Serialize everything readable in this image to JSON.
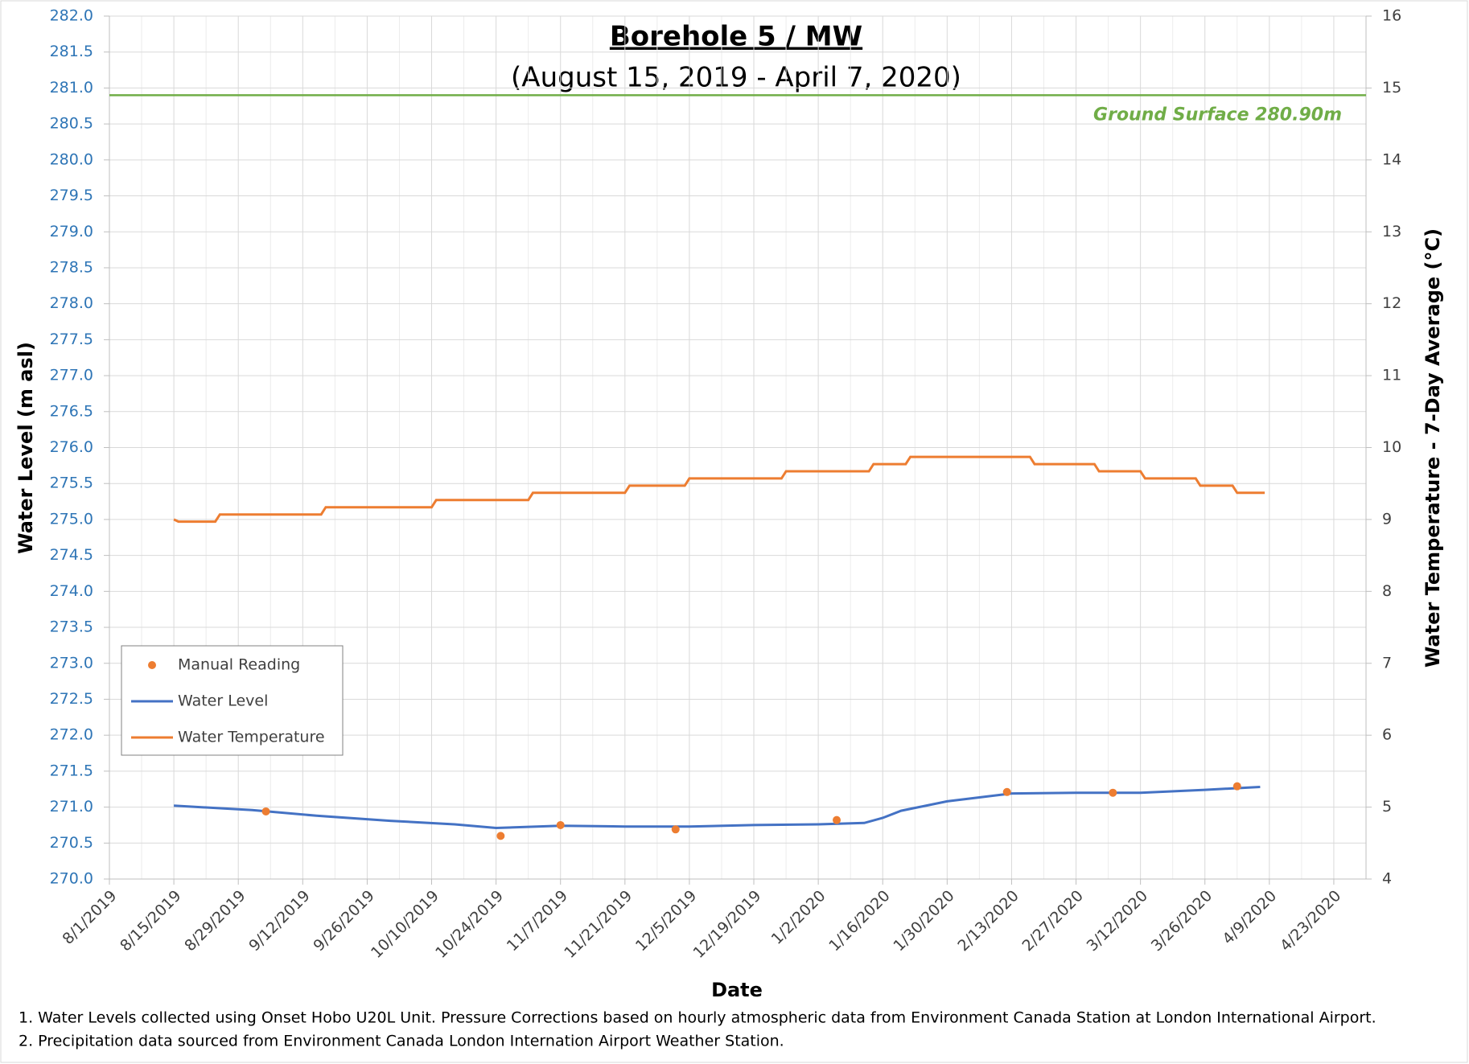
{
  "chart_data": {
    "type": "line",
    "title": "Borehole 5 / MW",
    "subtitle": "(August 15, 2019 - April 7, 2020)",
    "x_label": "Date",
    "y_label": "Water Level (m asl)",
    "y2_label": "Water Temperature - 7-Day Average (°C)",
    "xlim": [
      "8/1/2019",
      "4/30/2020"
    ],
    "xticks": [
      "8/1/2019",
      "8/15/2019",
      "8/29/2019",
      "9/12/2019",
      "9/26/2019",
      "10/10/2019",
      "10/24/2019",
      "11/7/2019",
      "11/21/2019",
      "12/5/2019",
      "12/19/2019",
      "1/2/2020",
      "1/16/2020",
      "1/30/2020",
      "2/13/2020",
      "2/27/2020",
      "3/12/2020",
      "3/26/2020",
      "4/9/2020",
      "4/23/2020"
    ],
    "ylim": [
      270,
      282
    ],
    "yticks": [
      {
        "value": 270,
        "label": "270.0"
      },
      270.5,
      {
        "value": 271,
        "label": "271.0"
      },
      271.5,
      {
        "value": 272,
        "label": "272.0"
      },
      272.5,
      {
        "value": 273,
        "label": "273.0"
      },
      273.5,
      {
        "value": 274,
        "label": "274.0"
      },
      274.5,
      {
        "value": 275,
        "label": "275.0"
      },
      275.5,
      {
        "value": 276,
        "label": "276.0"
      },
      276.5,
      {
        "value": 277,
        "label": "277.0"
      },
      277.5,
      {
        "value": 278,
        "label": "278.0"
      },
      278.5,
      {
        "value": 279,
        "label": "279.0"
      },
      279.5,
      {
        "value": 280,
        "label": "280.0"
      },
      280.5,
      {
        "value": 281,
        "label": "281.0"
      },
      281.5,
      {
        "value": 282,
        "label": "282.0"
      }
    ],
    "y2lim": [
      4,
      16
    ],
    "y2ticks": [
      4,
      5,
      6,
      7,
      8,
      9,
      10,
      11,
      12,
      13,
      14,
      15,
      16
    ],
    "grid": true,
    "legend": "lower left",
    "hlines": [
      {
        "value": 280.9,
        "label": "Ground Surface 280.90m",
        "color": "#70ad47"
      }
    ],
    "series": [
      {
        "name": "Manual Reading",
        "type": "scatter",
        "color": "#ed7d31",
        "x": [
          "9/4/2019",
          "10/25/2019",
          "11/7/2019",
          "12/2/2019",
          "1/6/2020",
          "2/12/2020",
          "3/6/2020",
          "4/2/2020"
        ],
        "values": [
          270.94,
          270.6,
          270.75,
          270.69,
          270.82,
          271.21,
          271.2,
          271.29
        ]
      },
      {
        "name": "Water Level",
        "type": "line",
        "color": "#4472c4",
        "x": [
          "8/15/2019",
          "9/1/2019",
          "9/15/2019",
          "10/1/2019",
          "10/15/2019",
          "10/24/2019",
          "11/7/2019",
          "11/21/2019",
          "12/5/2019",
          "12/19/2019",
          "1/2/2020",
          "1/12/2020",
          "1/16/2020",
          "1/20/2020",
          "1/30/2020",
          "2/13/2020",
          "2/27/2020",
          "3/12/2020",
          "3/26/2020",
          "4/7/2020"
        ],
        "values": [
          271.02,
          270.96,
          270.88,
          270.81,
          270.76,
          270.71,
          270.74,
          270.73,
          270.73,
          270.75,
          270.76,
          270.78,
          270.85,
          270.95,
          271.08,
          271.19,
          271.2,
          271.2,
          271.24,
          271.28
        ]
      },
      {
        "name": "Water Temperature",
        "type": "line",
        "axis": "y2",
        "color": "#ed7d31",
        "x": [
          "8/15/2019",
          "8/16/2019",
          "8/24/2019",
          "8/25/2019",
          "9/16/2019",
          "9/17/2019",
          "10/10/2019",
          "10/11/2019",
          "10/31/2019",
          "11/1/2019",
          "11/21/2019",
          "11/22/2019",
          "12/4/2019",
          "12/5/2019",
          "12/25/2019",
          "12/26/2019",
          "1/13/2020",
          "1/14/2020",
          "1/21/2020",
          "1/22/2020",
          "2/17/2020",
          "2/18/2020",
          "3/2/2020",
          "3/3/2020",
          "3/12/2020",
          "3/13/2020",
          "3/24/2020",
          "3/25/2020",
          "4/1/2020",
          "4/2/2020",
          "4/8/2020"
        ],
        "values": [
          9.0,
          8.97,
          8.97,
          9.07,
          9.07,
          9.17,
          9.17,
          9.27,
          9.27,
          9.37,
          9.37,
          9.47,
          9.47,
          9.57,
          9.57,
          9.67,
          9.67,
          9.77,
          9.77,
          9.87,
          9.87,
          9.77,
          9.77,
          9.67,
          9.67,
          9.57,
          9.57,
          9.47,
          9.47,
          9.37,
          9.37
        ]
      }
    ],
    "notes": [
      "1. Water Levels collected using Onset Hobo U20L Unit. Pressure Corrections based on hourly atmospheric data from Environment Canada Station at London International Airport.",
      "2. Precipitation data sourced from Environment Canada London Internation Airport Weather Station."
    ]
  }
}
